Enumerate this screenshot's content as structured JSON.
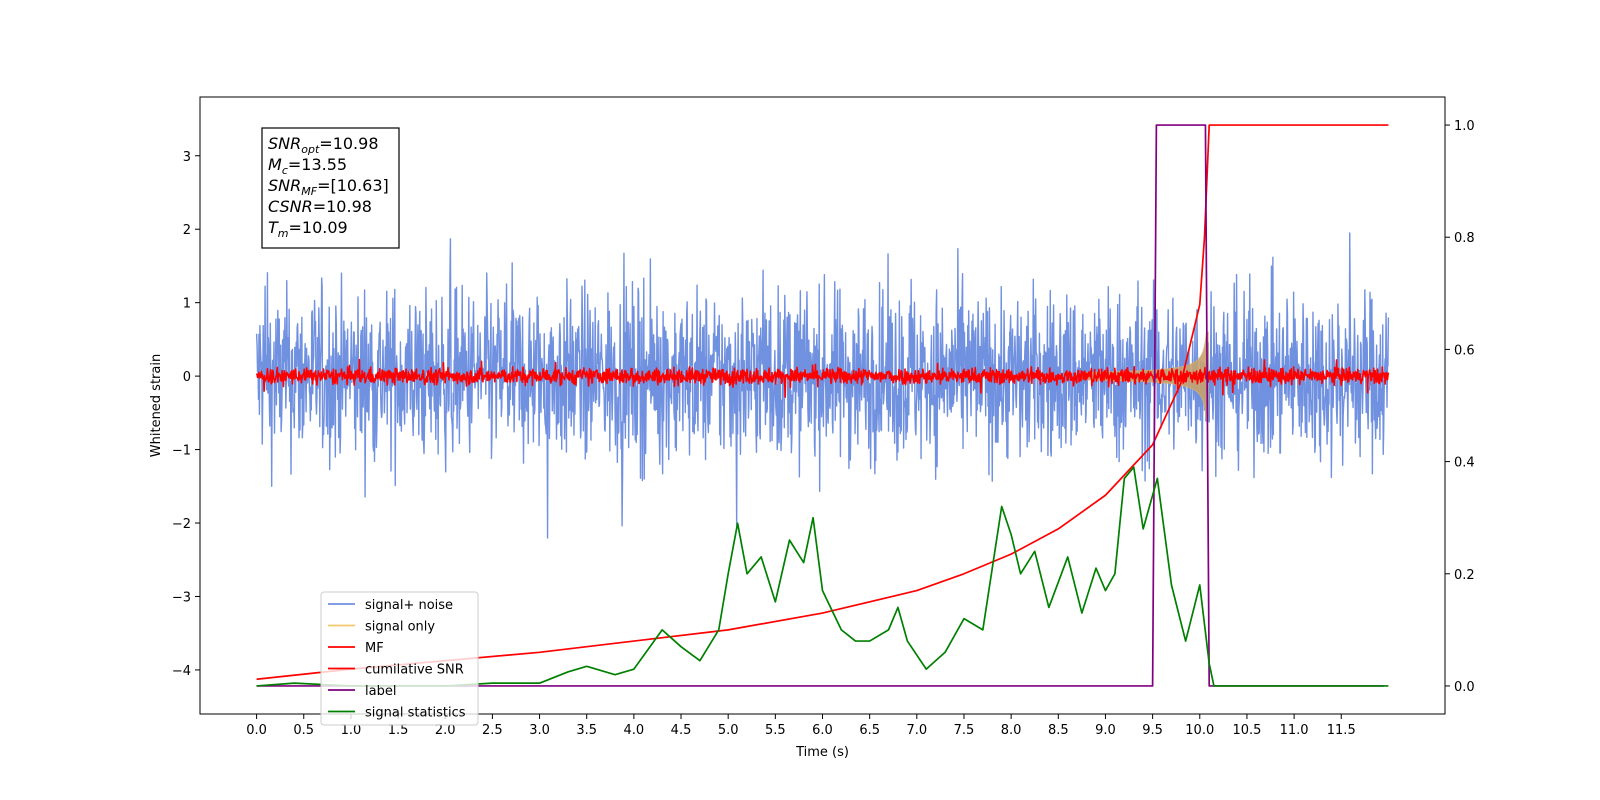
{
  "chart_data": {
    "type": "line",
    "xlabel": "Time (s)",
    "ylabel_left": "Whitened strain",
    "ylabel_right": "",
    "xlim": [
      -0.6,
      12.6
    ],
    "ylim_left": [
      -4.6,
      3.8
    ],
    "ylim_right": [
      -0.05,
      1.05
    ],
    "x_ticks": [
      0.0,
      0.5,
      1.0,
      1.5,
      2.0,
      2.5,
      3.0,
      3.5,
      4.0,
      4.5,
      5.0,
      5.5,
      6.0,
      6.5,
      7.0,
      7.5,
      8.0,
      8.5,
      9.0,
      9.5,
      10.0,
      10.5,
      11.0,
      11.5
    ],
    "x_tick_labels": [
      "0.0",
      "0.5",
      "1.0",
      "1.5",
      "2.0",
      "2.5",
      "3.0",
      "3.5",
      "4.0",
      "4.5",
      "5.0",
      "5.5",
      "6.0",
      "6.5",
      "7.0",
      "7.5",
      "8.0",
      "8.5",
      "9.0",
      "9.5",
      "10.0",
      "10.5",
      "11.0",
      "11.5"
    ],
    "y_left_ticks": [
      3,
      2,
      1,
      0,
      -1,
      -2,
      -3,
      -4
    ],
    "y_left_tick_labels": [
      "3",
      "2",
      "1",
      "0",
      "−1",
      "−2",
      "−3",
      "−4"
    ],
    "y_right_ticks": [
      1.0,
      0.8,
      0.6,
      0.4,
      0.2,
      0.0
    ],
    "y_right_tick_labels": [
      "1.0",
      "0.8",
      "0.6",
      "0.4",
      "0.2",
      "0.0"
    ],
    "grid": false,
    "legend_position": "lower-left",
    "series": [
      {
        "name": "signal+ noise",
        "axis": "left",
        "color": "#7090e0",
        "kind": "noise",
        "amplitude": 1.05,
        "range": [
          0,
          12
        ]
      },
      {
        "name": "signal only",
        "axis": "left",
        "color": "#f5c96b",
        "kind": "chirp",
        "t_merge": 10.09,
        "peak": 0.6,
        "range": [
          0,
          12
        ]
      },
      {
        "name": "MF",
        "axis": "left",
        "color": "#ff0000",
        "kind": "noise",
        "amplitude": 0.1,
        "range": [
          0,
          12
        ]
      },
      {
        "name": "cumilative SNR",
        "axis": "right",
        "color": "#ff0000",
        "points": [
          [
            0.0,
            0.012
          ],
          [
            1.0,
            0.03
          ],
          [
            2.0,
            0.045
          ],
          [
            3.0,
            0.06
          ],
          [
            4.0,
            0.08
          ],
          [
            5.0,
            0.1
          ],
          [
            6.0,
            0.13
          ],
          [
            7.0,
            0.17
          ],
          [
            7.5,
            0.2
          ],
          [
            8.0,
            0.235
          ],
          [
            8.5,
            0.28
          ],
          [
            9.0,
            0.34
          ],
          [
            9.5,
            0.43
          ],
          [
            9.8,
            0.54
          ],
          [
            10.0,
            0.68
          ],
          [
            10.05,
            0.8
          ],
          [
            10.1,
            1.0
          ],
          [
            12.0,
            1.0
          ]
        ]
      },
      {
        "name": "label",
        "axis": "right",
        "color": "#800080",
        "points": [
          [
            0.0,
            0.0
          ],
          [
            9.5,
            0.0
          ],
          [
            9.54,
            1.0
          ],
          [
            10.06,
            1.0
          ],
          [
            10.1,
            0.0
          ],
          [
            11.95,
            0.0
          ]
        ]
      },
      {
        "name": "signal statistics",
        "axis": "right",
        "color": "#008000",
        "points": [
          [
            0.0,
            0.0
          ],
          [
            0.4,
            0.005
          ],
          [
            1.0,
            0.0
          ],
          [
            2.0,
            0.0
          ],
          [
            2.5,
            0.005
          ],
          [
            3.0,
            0.005
          ],
          [
            3.3,
            0.025
          ],
          [
            3.5,
            0.035
          ],
          [
            3.8,
            0.02
          ],
          [
            4.0,
            0.03
          ],
          [
            4.3,
            0.1
          ],
          [
            4.5,
            0.07
          ],
          [
            4.7,
            0.045
          ],
          [
            4.9,
            0.1
          ],
          [
            5.0,
            0.2
          ],
          [
            5.1,
            0.29
          ],
          [
            5.2,
            0.2
          ],
          [
            5.35,
            0.23
          ],
          [
            5.5,
            0.15
          ],
          [
            5.65,
            0.26
          ],
          [
            5.8,
            0.22
          ],
          [
            5.9,
            0.3
          ],
          [
            6.0,
            0.17
          ],
          [
            6.2,
            0.1
          ],
          [
            6.35,
            0.08
          ],
          [
            6.5,
            0.08
          ],
          [
            6.7,
            0.1
          ],
          [
            6.8,
            0.14
          ],
          [
            6.9,
            0.08
          ],
          [
            7.1,
            0.03
          ],
          [
            7.3,
            0.06
          ],
          [
            7.5,
            0.12
          ],
          [
            7.7,
            0.1
          ],
          [
            7.9,
            0.32
          ],
          [
            8.0,
            0.27
          ],
          [
            8.1,
            0.2
          ],
          [
            8.25,
            0.24
          ],
          [
            8.4,
            0.14
          ],
          [
            8.6,
            0.23
          ],
          [
            8.75,
            0.13
          ],
          [
            8.9,
            0.21
          ],
          [
            9.0,
            0.17
          ],
          [
            9.1,
            0.2
          ],
          [
            9.2,
            0.37
          ],
          [
            9.3,
            0.39
          ],
          [
            9.4,
            0.28
          ],
          [
            9.55,
            0.37
          ],
          [
            9.7,
            0.18
          ],
          [
            9.85,
            0.08
          ],
          [
            10.0,
            0.18
          ],
          [
            10.1,
            0.04
          ],
          [
            10.15,
            0.0
          ],
          [
            12.0,
            0.0
          ]
        ]
      }
    ],
    "annotation": {
      "lines": [
        {
          "name": "SNR",
          "sub": "opt",
          "value": "=10.98"
        },
        {
          "name": "M",
          "sub": "c",
          "value": "=13.55"
        },
        {
          "name": "SNR",
          "sub": "MF",
          "value": "=[10.63]"
        },
        {
          "name": "CSNR",
          "sub": "",
          "value": "=10.98"
        },
        {
          "name": "T",
          "sub": "m",
          "value": "=10.09"
        }
      ]
    }
  }
}
